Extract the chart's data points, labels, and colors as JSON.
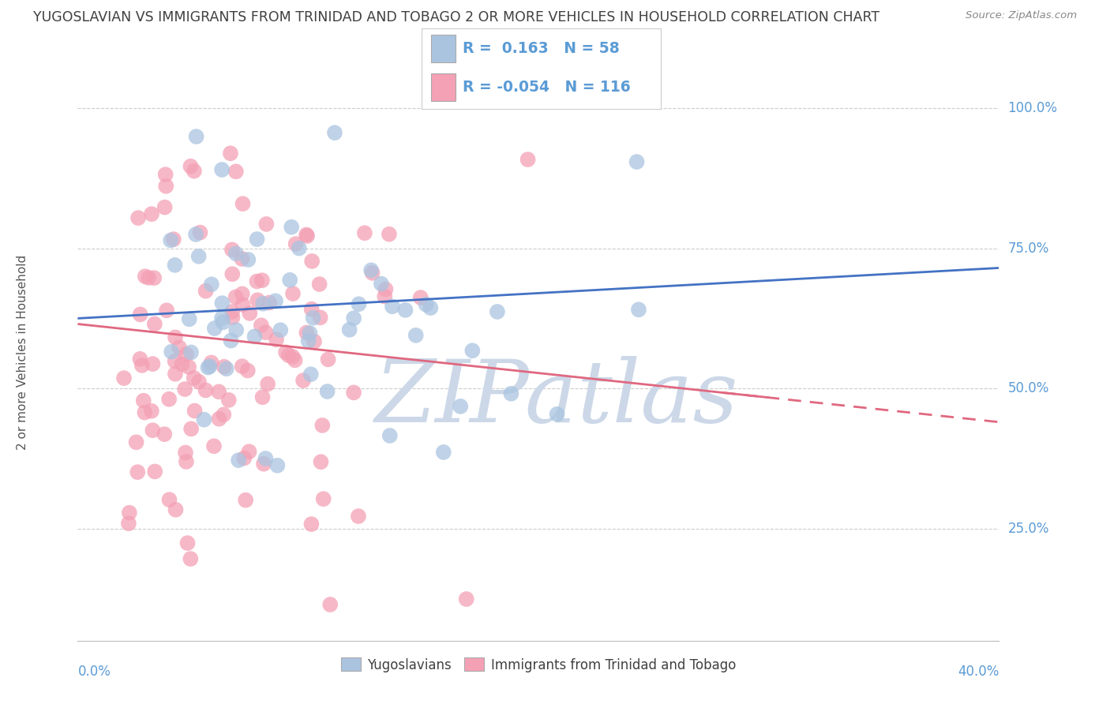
{
  "title": "YUGOSLAVIAN VS IMMIGRANTS FROM TRINIDAD AND TOBAGO 2 OR MORE VEHICLES IN HOUSEHOLD CORRELATION CHART",
  "source": "Source: ZipAtlas.com",
  "legend1_label": "Yugoslavians",
  "legend2_label": "Immigrants from Trinidad and Tobago",
  "R1": 0.163,
  "N1": 58,
  "R2": -0.054,
  "N2": 116,
  "blue_color": "#aac4e0",
  "pink_color": "#f4a0b5",
  "blue_line_color": "#4472c4",
  "pink_line_color": "#e06880",
  "title_color": "#404040",
  "axis_label_color": "#5b9bd5",
  "watermark_color": "#ccd8e8",
  "background_color": "#ffffff",
  "seed": 42,
  "xlim": [
    0.0,
    0.4
  ],
  "ylim": [
    0.05,
    1.08
  ],
  "yticks": [
    0.25,
    0.5,
    0.75,
    1.0
  ],
  "ytick_labels": [
    "25.0%",
    "50.0%",
    "75.0%",
    "100.0%"
  ],
  "xtick_left_label": "0.0%",
  "xtick_right_label": "40.0%",
  "ylabel": "2 or more Vehicles in Household"
}
